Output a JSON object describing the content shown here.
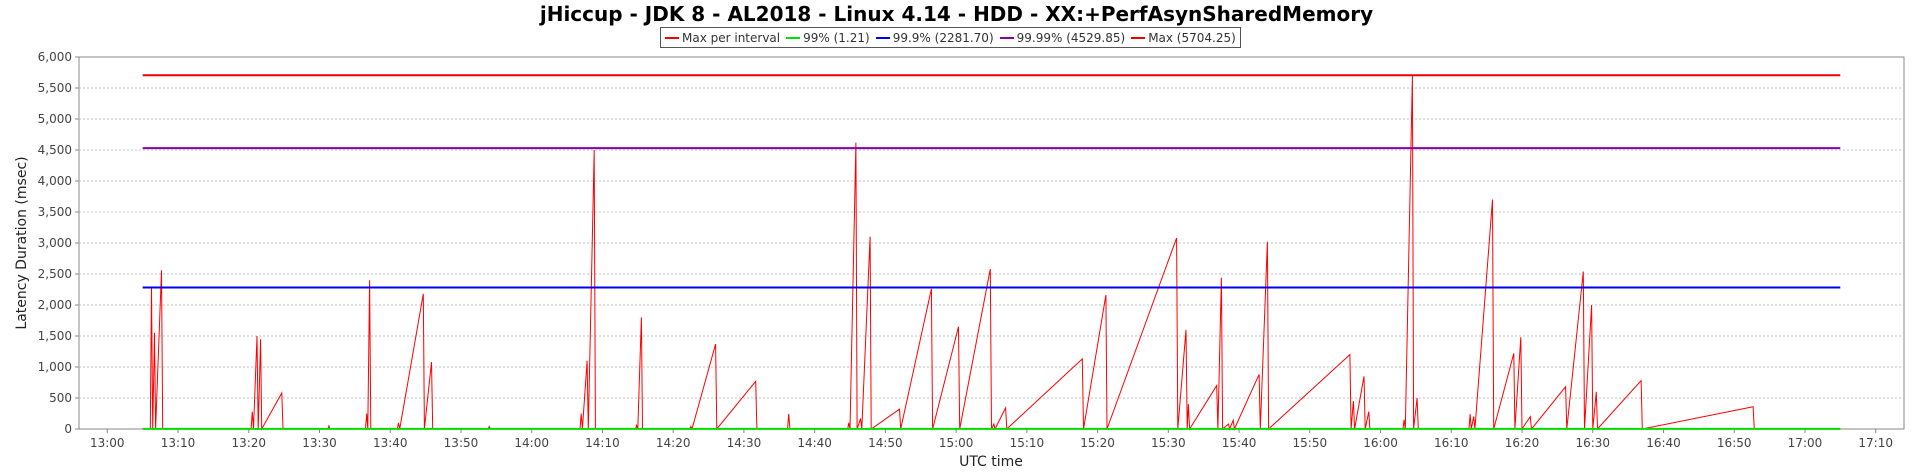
{
  "chart_data": {
    "type": "line",
    "title": "jHiccup - JDK 8 - AL2018 - Linux 4.14 - HDD - XX:+PerfAsynSharedMemory",
    "xlabel": "UTC time",
    "ylabel": "Latency Duration (msec)",
    "ylim": [
      0,
      6000
    ],
    "y_ticks": [
      0,
      500,
      1000,
      1500,
      2000,
      2500,
      3000,
      3500,
      4000,
      4500,
      5000,
      5500,
      6000
    ],
    "y_tick_labels": [
      "0",
      "500",
      "1,000",
      "1,500",
      "2,000",
      "2,500",
      "3,000",
      "3,500",
      "4,000",
      "4,500",
      "5,000",
      "5,500",
      "6,000"
    ],
    "xlim": [
      "12:56",
      "17:14"
    ],
    "x_ticks": [
      "13:00",
      "13:10",
      "13:20",
      "13:30",
      "13:40",
      "13:50",
      "14:00",
      "14:10",
      "14:20",
      "14:30",
      "14:40",
      "14:50",
      "15:00",
      "15:10",
      "15:20",
      "15:30",
      "15:40",
      "15:50",
      "16:00",
      "16:10",
      "16:20",
      "16:30",
      "16:40",
      "16:50",
      "17:00",
      "17:10"
    ],
    "grid": true,
    "legend_placement": "top-center",
    "series": [
      {
        "name": "Max per interval",
        "color": "#ff0000",
        "points": [
          [
            "13:05:00",
            0
          ],
          [
            "13:06:05",
            0
          ],
          [
            "13:06:15",
            2300
          ],
          [
            "13:06:25",
            0
          ],
          [
            "13:06:40",
            1550
          ],
          [
            "13:06:50",
            0
          ],
          [
            "13:07:40",
            2560
          ],
          [
            "13:07:50",
            0
          ],
          [
            "13:20:20",
            0
          ],
          [
            "13:20:30",
            280
          ],
          [
            "13:20:40",
            0
          ],
          [
            "13:21:10",
            1500
          ],
          [
            "13:21:20",
            0
          ],
          [
            "13:21:40",
            1450
          ],
          [
            "13:21:50",
            0
          ],
          [
            "13:24:40",
            580
          ],
          [
            "13:24:50",
            0
          ],
          [
            "13:31:10",
            0
          ],
          [
            "13:31:20",
            50
          ],
          [
            "13:31:30",
            0
          ],
          [
            "13:36:30",
            0
          ],
          [
            "13:36:40",
            250
          ],
          [
            "13:36:50",
            0
          ],
          [
            "13:37:05",
            2400
          ],
          [
            "13:37:15",
            0
          ],
          [
            "13:41:00",
            0
          ],
          [
            "13:41:10",
            100
          ],
          [
            "13:41:20",
            0
          ],
          [
            "13:44:40",
            2180
          ],
          [
            "13:44:50",
            0
          ],
          [
            "13:45:50",
            1080
          ],
          [
            "13:46:00",
            0
          ],
          [
            "13:53:50",
            0
          ],
          [
            "13:54:00",
            40
          ],
          [
            "13:54:10",
            0
          ],
          [
            "14:06:50",
            0
          ],
          [
            "14:07:00",
            250
          ],
          [
            "14:07:10",
            0
          ],
          [
            "14:07:50",
            1100
          ],
          [
            "14:08:00",
            0
          ],
          [
            "14:08:50",
            4500
          ],
          [
            "14:09:00",
            0
          ],
          [
            "14:14:40",
            0
          ],
          [
            "14:14:50",
            60
          ],
          [
            "14:15:00",
            0
          ],
          [
            "14:15:30",
            1800
          ],
          [
            "14:15:40",
            0
          ],
          [
            "14:22:20",
            0
          ],
          [
            "14:22:30",
            40
          ],
          [
            "14:22:40",
            0
          ],
          [
            "14:26:00",
            1370
          ],
          [
            "14:26:10",
            0
          ],
          [
            "14:31:40",
            770
          ],
          [
            "14:31:50",
            0
          ],
          [
            "14:36:10",
            0
          ],
          [
            "14:36:20",
            240
          ],
          [
            "14:36:30",
            0
          ],
          [
            "14:44:40",
            0
          ],
          [
            "14:44:50",
            100
          ],
          [
            "14:45:00",
            0
          ],
          [
            "14:45:50",
            4620
          ],
          [
            "14:46:00",
            0
          ],
          [
            "14:46:30",
            170
          ],
          [
            "14:46:40",
            0
          ],
          [
            "14:47:50",
            3100
          ],
          [
            "14:48:00",
            0
          ],
          [
            "14:52:00",
            320
          ],
          [
            "14:52:10",
            0
          ],
          [
            "14:56:30",
            2260
          ],
          [
            "14:56:40",
            0
          ],
          [
            "15:00:20",
            1650
          ],
          [
            "15:00:30",
            0
          ],
          [
            "15:04:50",
            2580
          ],
          [
            "15:05:00",
            0
          ],
          [
            "15:05:20",
            80
          ],
          [
            "15:05:30",
            0
          ],
          [
            "15:07:00",
            340
          ],
          [
            "15:07:10",
            0
          ],
          [
            "15:17:50",
            1130
          ],
          [
            "15:18:00",
            0
          ],
          [
            "15:21:10",
            2160
          ],
          [
            "15:21:20",
            0
          ],
          [
            "15:31:10",
            3080
          ],
          [
            "15:31:20",
            0
          ],
          [
            "15:32:30",
            1600
          ],
          [
            "15:32:40",
            0
          ],
          [
            "15:32:50",
            400
          ],
          [
            "15:33:00",
            0
          ],
          [
            "15:36:50",
            700
          ],
          [
            "15:37:00",
            0
          ],
          [
            "15:37:30",
            2440
          ],
          [
            "15:37:40",
            0
          ],
          [
            "15:38:30",
            80
          ],
          [
            "15:38:40",
            0
          ],
          [
            "15:39:10",
            140
          ],
          [
            "15:39:20",
            0
          ],
          [
            "15:42:50",
            880
          ],
          [
            "15:43:00",
            0
          ],
          [
            "15:44:00",
            3020
          ],
          [
            "15:44:10",
            0
          ],
          [
            "15:55:40",
            1200
          ],
          [
            "15:55:50",
            0
          ],
          [
            "15:56:10",
            450
          ],
          [
            "15:56:20",
            0
          ],
          [
            "15:57:40",
            850
          ],
          [
            "15:57:50",
            0
          ],
          [
            "15:58:20",
            280
          ],
          [
            "15:58:30",
            0
          ],
          [
            "16:03:10",
            0
          ],
          [
            "16:03:20",
            150
          ],
          [
            "16:03:30",
            0
          ],
          [
            "16:04:30",
            5700
          ],
          [
            "16:04:40",
            0
          ],
          [
            "16:05:10",
            500
          ],
          [
            "16:05:20",
            0
          ],
          [
            "16:12:30",
            0
          ],
          [
            "16:12:40",
            240
          ],
          [
            "16:12:50",
            0
          ],
          [
            "16:13:10",
            200
          ],
          [
            "16:13:20",
            0
          ],
          [
            "16:15:50",
            3700
          ],
          [
            "16:16:00",
            0
          ],
          [
            "16:18:50",
            1220
          ],
          [
            "16:19:00",
            0
          ],
          [
            "16:19:50",
            1480
          ],
          [
            "16:20:00",
            0
          ],
          [
            "16:21:10",
            200
          ],
          [
            "16:21:20",
            0
          ],
          [
            "16:26:10",
            680
          ],
          [
            "16:26:20",
            0
          ],
          [
            "16:28:40",
            2540
          ],
          [
            "16:28:50",
            0
          ],
          [
            "16:29:50",
            2000
          ],
          [
            "16:30:00",
            0
          ],
          [
            "16:30:30",
            600
          ],
          [
            "16:30:40",
            0
          ],
          [
            "16:36:50",
            780
          ],
          [
            "16:37:00",
            0
          ],
          [
            "16:52:40",
            360
          ],
          [
            "16:52:50",
            0
          ],
          [
            "17:05:00",
            0
          ]
        ]
      },
      {
        "name": "99% (1.21)",
        "color": "#00dd00",
        "points": [
          [
            "13:05:00",
            1.21
          ],
          [
            "17:05:00",
            1.21
          ]
        ]
      },
      {
        "name": "99.9% (2281.70)",
        "color": "#0000ee",
        "points": [
          [
            "13:05:00",
            2281.7
          ],
          [
            "17:05:00",
            2281.7
          ]
        ]
      },
      {
        "name": "99.99% (4529.85)",
        "color": "#8800aa",
        "points": [
          [
            "13:05:00",
            4529.85
          ],
          [
            "17:05:00",
            4529.85
          ]
        ]
      },
      {
        "name": "Max (5704.25)",
        "color": "#ee0000",
        "points": [
          [
            "13:05:00",
            5704.25
          ],
          [
            "17:05:00",
            5704.25
          ]
        ]
      }
    ]
  }
}
